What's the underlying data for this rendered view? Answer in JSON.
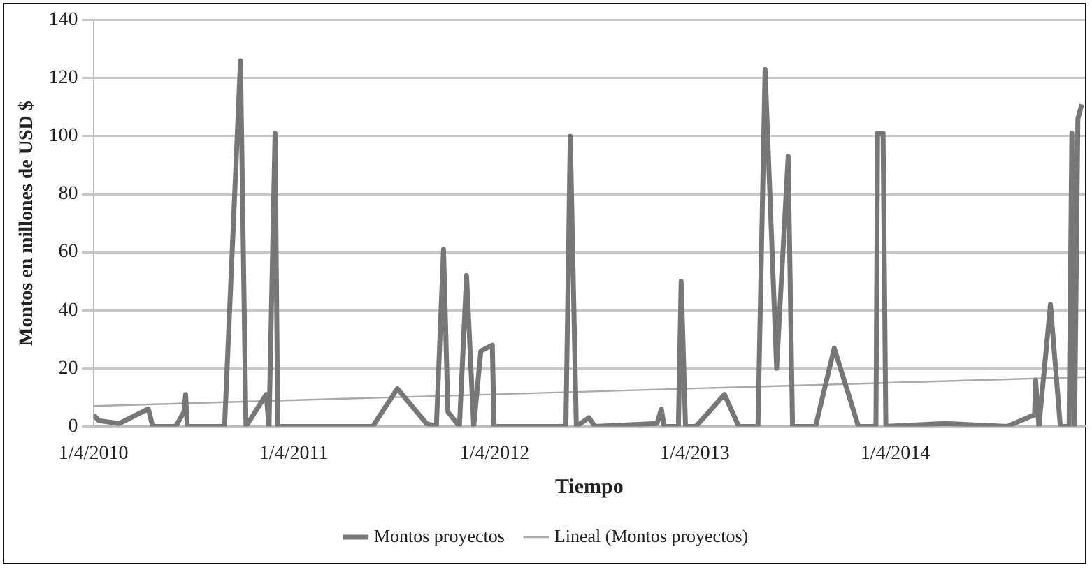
{
  "chart_data": {
    "type": "line",
    "xlabel": "Tiempo",
    "ylabel": "Montos en millones de USD $",
    "x": [
      "2010-04-01",
      "2010-04-11",
      "2010-05-18",
      "2010-07-10",
      "2010-07-18",
      "2010-08-29",
      "2010-09-13",
      "2010-09-16",
      "2010-09-19",
      "2010-11-26",
      "2010-12-25",
      "2011-01-04",
      "2011-02-10",
      "2011-02-15",
      "2011-02-26",
      "2011-03-03",
      "2011-05-29",
      "2011-08-23",
      "2011-10-07",
      "2011-11-29",
      "2011-12-17",
      "2011-12-30",
      "2012-01-07",
      "2012-01-28",
      "2012-02-10",
      "2012-02-23",
      "2012-03-07",
      "2012-03-28",
      "2012-03-31",
      "2012-08-09",
      "2012-08-17",
      "2012-08-28",
      "2012-09-20",
      "2012-10-01",
      "2013-01-22",
      "2013-01-30",
      "2013-02-04",
      "2013-03-02",
      "2013-03-07",
      "2013-03-15",
      "2013-04-03",
      "2013-05-25",
      "2013-06-20",
      "2013-07-25",
      "2013-08-07",
      "2013-08-28",
      "2013-09-18",
      "2013-09-26",
      "2013-11-07",
      "2013-12-11",
      "2014-01-24",
      "2014-02-25",
      "2014-02-28",
      "2014-03-10",
      "2014-03-15",
      "2014-07-01",
      "2014-10-22",
      "2014-12-11",
      "2014-12-13",
      "2014-12-19",
      "2015-01-09",
      "2015-01-27",
      "2015-02-12",
      "2015-02-17",
      "2015-02-22",
      "2015-02-28",
      "2015-03-07"
    ],
    "series": [
      {
        "name": "Montos proyectos",
        "color": "#777777",
        "values": [
          4,
          2,
          1,
          6,
          0,
          0,
          5,
          11,
          0,
          0,
          126,
          0,
          11,
          0,
          101,
          0,
          0,
          0,
          13,
          1,
          0,
          61,
          5,
          0,
          52,
          0,
          26,
          28,
          0,
          0,
          100,
          0,
          3,
          0,
          1,
          6,
          0,
          0,
          50,
          0,
          0,
          11,
          0,
          0,
          123,
          20,
          93,
          0,
          0,
          27,
          0,
          0,
          101,
          101,
          0,
          1,
          0,
          4,
          16,
          0,
          42,
          0,
          0,
          101,
          0,
          106,
          111
        ]
      },
      {
        "name": "Lineal (Montos proyectos)",
        "color": "#aaaaaa",
        "x": [
          "2010-04-01",
          "2015-03-13"
        ],
        "values": [
          7,
          17
        ]
      }
    ],
    "xlim": [
      "2010-04-01",
      "2015-03-13"
    ],
    "xticks": [
      {
        "value": "2010-04-01",
        "label": "1/4/2010"
      },
      {
        "value": "2011-04-01",
        "label": "1/4/2011"
      },
      {
        "value": "2012-04-01",
        "label": "1/4/2012"
      },
      {
        "value": "2013-04-01",
        "label": "1/4/2013"
      },
      {
        "value": "2014-04-01",
        "label": "1/4/2014"
      }
    ],
    "ylim": [
      0,
      140
    ],
    "yticks": [
      0,
      20,
      40,
      60,
      80,
      100,
      120,
      140
    ],
    "grid": "y",
    "legend": "bottom",
    "marker": "none"
  }
}
